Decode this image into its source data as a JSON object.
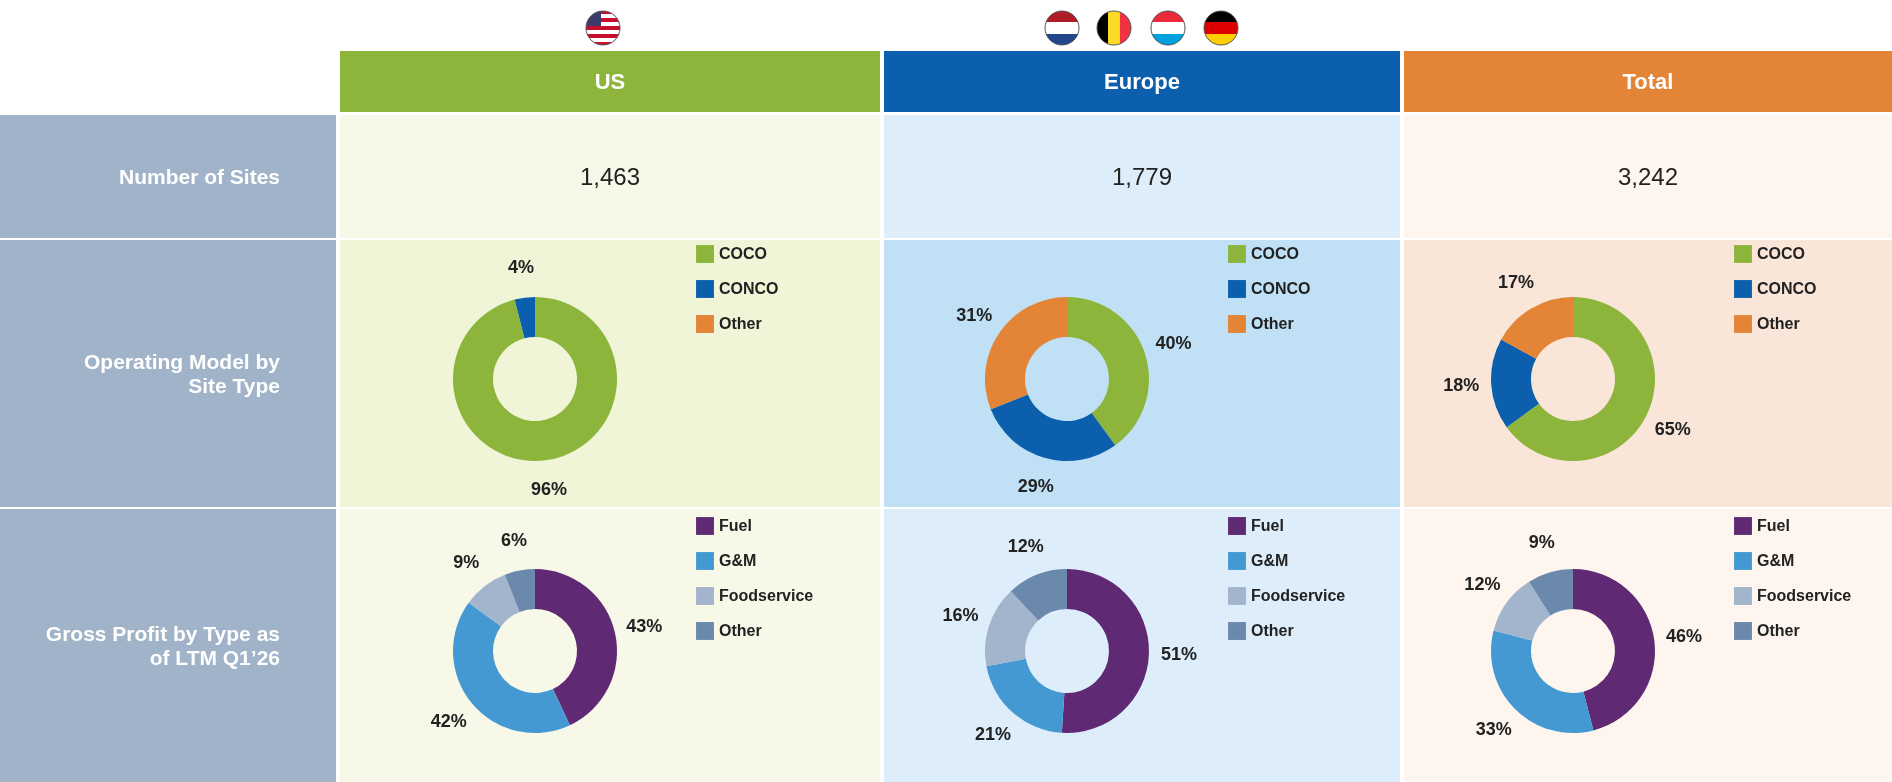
{
  "chart_data": [
    {
      "type": "other",
      "categories": [
        "US",
        "Europe",
        "Total"
      ],
      "colors": [
        "#8db53c",
        "#0b5fad",
        "#e38436"
      ],
      "annotations": [
        "Number of Sites",
        "1,463",
        "1,779",
        "3,242",
        "Operating Model by Site Type",
        "Gross Profit by Type as of LTM Q1’26"
      ]
    },
    {
      "type": "donut",
      "categories": [
        "COCO",
        "CONCO",
        "Other"
      ],
      "values": [
        96,
        4,
        null
      ],
      "colors": [
        "#8db53c",
        "#0b5fad",
        "#e38436"
      ],
      "value_labels": [
        "96%",
        "4%",
        null
      ],
      "legend": "right"
    },
    {
      "type": "donut",
      "categories": [
        "COCO",
        "CONCO",
        "Other"
      ],
      "values": [
        40,
        29,
        31
      ],
      "colors": [
        "#8db53c",
        "#0b5fad",
        "#e38436"
      ],
      "value_labels": [
        "40%",
        "29%",
        "31%"
      ],
      "legend": "right"
    },
    {
      "type": "donut",
      "categories": [
        "COCO",
        "CONCO",
        "Other"
      ],
      "values": [
        65,
        18,
        17
      ],
      "colors": [
        "#8db53c",
        "#0b5fad",
        "#e38436"
      ],
      "value_labels": [
        "65%",
        "18%",
        "17%"
      ],
      "legend": "right"
    },
    {
      "type": "donut",
      "categories": [
        "Fuel",
        "G&M",
        "Foodservice",
        "Other"
      ],
      "values": [
        43,
        42,
        9,
        6
      ],
      "colors": [
        "#5f2a73",
        "#4499d3",
        "#a3b5cc",
        "#6a89ad"
      ],
      "value_labels": [
        "43%",
        "42%",
        "9%",
        "6%"
      ],
      "legend": "right"
    },
    {
      "type": "donut",
      "categories": [
        "Fuel",
        "G&M",
        "Foodservice",
        "Other"
      ],
      "values": [
        51,
        21,
        16,
        12
      ],
      "colors": [
        "#5f2a73",
        "#4499d3",
        "#a3b5cc",
        "#6a89ad"
      ],
      "value_labels": [
        "51%",
        "21%",
        "16%",
        "12%"
      ],
      "legend": "right"
    },
    {
      "type": "donut",
      "categories": [
        "Fuel",
        "G&M",
        "Foodservice",
        "Other"
      ],
      "values": [
        46,
        33,
        12,
        9
      ],
      "colors": [
        "#5f2a73",
        "#4499d3",
        "#a3b5cc",
        "#6a89ad"
      ],
      "value_labels": [
        "46%",
        "33%",
        "12%",
        "9%"
      ],
      "legend": "right"
    }
  ]
}
